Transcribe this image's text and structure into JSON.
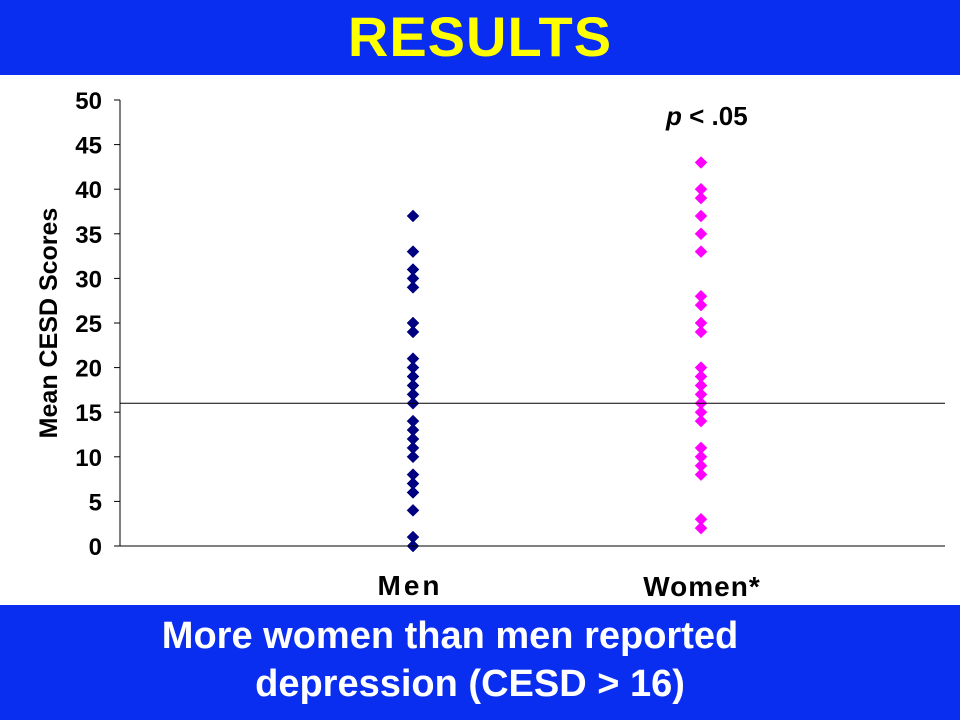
{
  "header": {
    "title": "RESULTS"
  },
  "colors": {
    "header_bg": "#0a2ef0",
    "title": "#ffff00",
    "men_marker": "#000080",
    "women_marker": "#ff00ff",
    "footer_text": "#ffffff"
  },
  "chart_data": {
    "type": "scatter",
    "ylabel": "Mean CESD Scores",
    "ylim": [
      0,
      50
    ],
    "yticks": [
      "0",
      "5",
      "10",
      "15",
      "20",
      "25",
      "30",
      "35",
      "40",
      "45",
      "50"
    ],
    "categories": [
      "Men",
      "Women*"
    ],
    "annotation": {
      "italic": "p",
      "rest": " < .05"
    },
    "reference_line": 16,
    "marker": "diamond",
    "series": [
      {
        "category": "Men",
        "values": [
          37,
          33,
          31,
          30,
          29,
          25,
          24,
          21,
          20,
          19,
          18,
          17,
          16,
          14,
          13,
          12,
          11,
          10,
          8,
          7,
          6,
          4,
          1,
          0
        ]
      },
      {
        "category": "Women*",
        "values": [
          43,
          40,
          39,
          37,
          35,
          33,
          28,
          27,
          25,
          24,
          20,
          19,
          18,
          17,
          16,
          15,
          14,
          11,
          10,
          9,
          8,
          3,
          2
        ]
      }
    ]
  },
  "footer": {
    "line1": "More women than men reported",
    "line2": "depression (CESD > 16)"
  }
}
